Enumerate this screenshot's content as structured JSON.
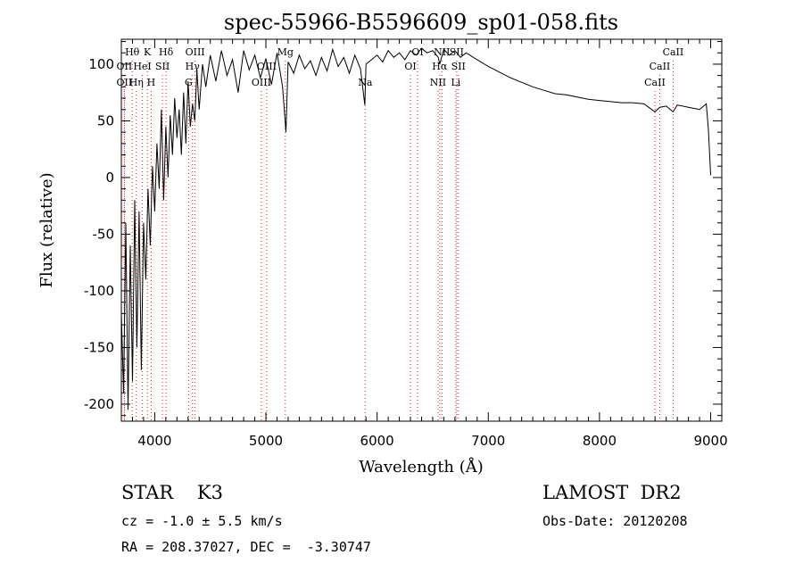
{
  "chart_data": {
    "type": "line",
    "title": "spec-55966-B5596609_sp01-058.fits",
    "xlabel": "Wavelength (Å)",
    "ylabel": "Flux (relative)",
    "xlim": [
      3700,
      9100
    ],
    "ylim": [
      -215,
      122
    ],
    "xticks": [
      4000,
      5000,
      6000,
      7000,
      8000,
      9000
    ],
    "yticks": [
      -200,
      -150,
      -100,
      -50,
      0,
      50,
      100
    ],
    "grid": false,
    "series": [
      {
        "color": "#000000",
        "x": [
          3700,
          3720,
          3740,
          3760,
          3780,
          3800,
          3820,
          3840,
          3860,
          3880,
          3900,
          3920,
          3940,
          3960,
          3980,
          4000,
          4020,
          4040,
          4060,
          4080,
          4100,
          4120,
          4140,
          4160,
          4180,
          4200,
          4220,
          4240,
          4260,
          4280,
          4300,
          4320,
          4340,
          4360,
          4380,
          4400,
          4430,
          4460,
          4500,
          4550,
          4600,
          4650,
          4700,
          4750,
          4800,
          4850,
          4900,
          4950,
          5000,
          5050,
          5100,
          5150,
          5180,
          5200,
          5250,
          5300,
          5350,
          5400,
          5450,
          5500,
          5550,
          5600,
          5650,
          5700,
          5750,
          5800,
          5850,
          5890,
          5900,
          5950,
          6000,
          6050,
          6100,
          6150,
          6200,
          6250,
          6300,
          6350,
          6400,
          6450,
          6500,
          6550,
          6563,
          6600,
          6650,
          6700,
          6750,
          6800,
          6900,
          7000,
          7100,
          7200,
          7300,
          7400,
          7500,
          7600,
          7700,
          7800,
          7900,
          8000,
          8100,
          8200,
          8300,
          8400,
          8498,
          8542,
          8600,
          8662,
          8700,
          8800,
          8900,
          8960,
          8980,
          9000
        ],
        "values": [
          -120,
          -190,
          -40,
          -205,
          -60,
          -180,
          -20,
          -150,
          -30,
          -170,
          -40,
          -90,
          -10,
          -60,
          10,
          -30,
          30,
          -10,
          60,
          -20,
          45,
          0,
          55,
          20,
          70,
          35,
          60,
          20,
          75,
          30,
          85,
          45,
          65,
          50,
          95,
          60,
          100,
          80,
          108,
          85,
          112,
          90,
          104,
          75,
          112,
          95,
          108,
          88,
          105,
          82,
          110,
          80,
          40,
          102,
          92,
          108,
          96,
          103,
          90,
          106,
          94,
          113,
          98,
          106,
          92,
          108,
          96,
          64,
          100,
          104,
          108,
          102,
          112,
          106,
          110,
          104,
          112,
          108,
          114,
          110,
          112,
          106,
          100,
          113,
          108,
          112,
          106,
          110,
          104,
          98,
          93,
          88,
          84,
          80,
          77,
          74,
          73,
          71,
          69,
          68,
          67,
          66,
          66,
          65,
          58,
          62,
          63,
          58,
          64,
          62,
          60,
          65,
          42,
          2
        ]
      }
    ],
    "line_markers": [
      {
        "name": "Hθ",
        "x": 3798,
        "row": 1
      },
      {
        "name": "OII",
        "x": 3727,
        "row": 2
      },
      {
        "name": "OII",
        "x": 3727,
        "row": 3
      },
      {
        "name": "K",
        "x": 3934,
        "row": 1
      },
      {
        "name": "HeI",
        "x": 3889,
        "row": 2
      },
      {
        "name": "Hη",
        "x": 3835,
        "row": 3
      },
      {
        "name": "Hδ",
        "x": 4102,
        "row": 1
      },
      {
        "name": "SII",
        "x": 4070,
        "row": 2
      },
      {
        "name": "H",
        "x": 3968,
        "row": 3
      },
      {
        "name": "OIII",
        "x": 4363,
        "row": 1
      },
      {
        "name": "Hγ",
        "x": 4340,
        "row": 2
      },
      {
        "name": "G",
        "x": 4305,
        "row": 3
      },
      {
        "name": "Mg",
        "x": 5175,
        "row": 1
      },
      {
        "name": "OIII",
        "x": 5007,
        "row": 2
      },
      {
        "name": "OIII",
        "x": 4959,
        "row": 3
      },
      {
        "name": "Na",
        "x": 5893,
        "row": 3
      },
      {
        "name": "OI",
        "x": 6364,
        "row": 1
      },
      {
        "name": "OI",
        "x": 6300,
        "row": 2
      },
      {
        "name": "NII",
        "x": 6583,
        "row": 1
      },
      {
        "name": "SII",
        "x": 6716,
        "row": 1
      },
      {
        "name": "Hα",
        "x": 6563,
        "row": 2
      },
      {
        "name": "SII",
        "x": 6731,
        "row": 2
      },
      {
        "name": "NII",
        "x": 6548,
        "row": 3
      },
      {
        "name": "Li",
        "x": 6708,
        "row": 3
      },
      {
        "name": "CaII",
        "x": 8662,
        "row": 1
      },
      {
        "name": "CaII",
        "x": 8542,
        "row": 2
      },
      {
        "name": "CaII",
        "x": 8498,
        "row": 3
      }
    ]
  },
  "footer": {
    "object_class": "STAR    K3",
    "survey": "LAMOST  DR2",
    "cz": "cz = -1.0 ± 5.5 km/s",
    "obs_date": "Obs-Date: 20120208",
    "coords": "RA = 208.37027, DEC =  -3.30747"
  }
}
